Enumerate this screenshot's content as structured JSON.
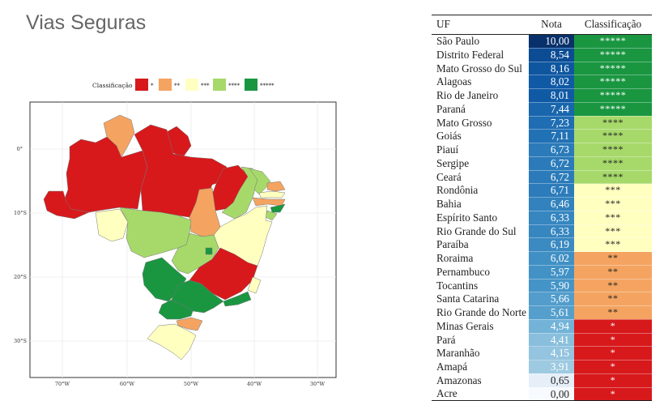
{
  "page": {
    "title": "Vias Seguras"
  },
  "colors": {
    "c1": "#d7191c",
    "c2": "#f4a460",
    "c3": "#ffffc0",
    "c4": "#a6d96a",
    "c5": "#1a9641"
  },
  "map": {
    "legend_title": "Classificação",
    "legend_items": [
      {
        "label": "*",
        "color": "#d7191c"
      },
      {
        "label": "**",
        "color": "#f4a460"
      },
      {
        "label": "***",
        "color": "#ffffc0"
      },
      {
        "label": "****",
        "color": "#a6d96a"
      },
      {
        "label": "*****",
        "color": "#1a9641"
      }
    ],
    "lat_labels": [
      "0°",
      "10°S",
      "20°S",
      "30°S"
    ],
    "lon_labels": [
      "70°W",
      "60°W",
      "50°W",
      "40°W",
      "30°W"
    ]
  },
  "table": {
    "headers": {
      "uf": "UF",
      "nota": "Nota",
      "classificacao": "Classificação"
    },
    "rows": [
      {
        "uf": "São Paulo",
        "nota": "10,00",
        "cls": "*****",
        "nota_color": "#08306b",
        "cls_color": "#1a9641",
        "cls_text": "#ffffff"
      },
      {
        "uf": "Distrito Federal",
        "nota": "8,54",
        "cls": "*****",
        "nota_color": "#0b4c94",
        "cls_color": "#1a9641",
        "cls_text": "#ffffff"
      },
      {
        "uf": "Mato Grosso do Sul",
        "nota": "8,16",
        "cls": "*****",
        "nota_color": "#0e56a0",
        "cls_color": "#1a9641",
        "cls_text": "#ffffff"
      },
      {
        "uf": "Alagoas",
        "nota": "8,02",
        "cls": "*****",
        "nota_color": "#105aa5",
        "cls_color": "#1a9641",
        "cls_text": "#ffffff"
      },
      {
        "uf": "Rio de Janeiro",
        "nota": "8,01",
        "cls": "*****",
        "nota_color": "#105aa5",
        "cls_color": "#1a9641",
        "cls_text": "#ffffff"
      },
      {
        "uf": "Paraná",
        "nota": "7,44",
        "cls": "*****",
        "nota_color": "#1966ad",
        "cls_color": "#1a9641",
        "cls_text": "#ffffff"
      },
      {
        "uf": "Mato Grosso",
        "nota": "7,23",
        "cls": "****",
        "nota_color": "#1f6db2",
        "cls_color": "#a6d96a",
        "cls_text": "#222222"
      },
      {
        "uf": "Goiás",
        "nota": "7,11",
        "cls": "****",
        "nota_color": "#2171b5",
        "cls_color": "#a6d96a",
        "cls_text": "#222222"
      },
      {
        "uf": "Piauí",
        "nota": "6,73",
        "cls": "****",
        "nota_color": "#2b7bba",
        "cls_color": "#a6d96a",
        "cls_text": "#222222"
      },
      {
        "uf": "Sergipe",
        "nota": "6,72",
        "cls": "****",
        "nota_color": "#2b7bba",
        "cls_color": "#a6d96a",
        "cls_text": "#222222"
      },
      {
        "uf": "Ceará",
        "nota": "6,72",
        "cls": "****",
        "nota_color": "#2b7bba",
        "cls_color": "#a6d96a",
        "cls_text": "#222222"
      },
      {
        "uf": "Rondônia",
        "nota": "6,71",
        "cls": "***",
        "nota_color": "#2c7cbb",
        "cls_color": "#ffffc0",
        "cls_text": "#222222"
      },
      {
        "uf": "Bahia",
        "nota": "6,46",
        "cls": "***",
        "nota_color": "#3282be",
        "cls_color": "#ffffc0",
        "cls_text": "#222222"
      },
      {
        "uf": "Espírito Santo",
        "nota": "6,33",
        "cls": "***",
        "nota_color": "#3686c0",
        "cls_color": "#ffffc0",
        "cls_text": "#222222"
      },
      {
        "uf": "Rio Grande do Sul",
        "nota": "6,33",
        "cls": "***",
        "nota_color": "#3686c0",
        "cls_color": "#ffffc0",
        "cls_text": "#222222"
      },
      {
        "uf": "Paraíba",
        "nota": "6,19",
        "cls": "***",
        "nota_color": "#3b8ac2",
        "cls_color": "#ffffc0",
        "cls_text": "#222222"
      },
      {
        "uf": "Roraima",
        "nota": "6,02",
        "cls": "**",
        "nota_color": "#4090c5",
        "cls_color": "#f4a460",
        "cls_text": "#222222"
      },
      {
        "uf": "Pernambuco",
        "nota": "5,97",
        "cls": "**",
        "nota_color": "#4292c6",
        "cls_color": "#f4a460",
        "cls_text": "#222222"
      },
      {
        "uf": "Tocantins",
        "nota": "5,90",
        "cls": "**",
        "nota_color": "#4594c7",
        "cls_color": "#f4a460",
        "cls_text": "#222222"
      },
      {
        "uf": "Santa Catarina",
        "nota": "5,66",
        "cls": "**",
        "nota_color": "#529dcc",
        "cls_color": "#f4a460",
        "cls_text": "#222222"
      },
      {
        "uf": "Rio Grande do Norte",
        "nota": "5,61",
        "cls": "**",
        "nota_color": "#559fcd",
        "cls_color": "#f4a460",
        "cls_text": "#222222"
      },
      {
        "uf": "Minas Gerais",
        "nota": "4,94",
        "cls": "*",
        "nota_color": "#73b3d8",
        "cls_color": "#d7191c",
        "cls_text": "#ffffff"
      },
      {
        "uf": "Pará",
        "nota": "4,41",
        "cls": "*",
        "nota_color": "#89bfdd",
        "cls_color": "#d7191c",
        "cls_text": "#ffffff"
      },
      {
        "uf": "Maranhão",
        "nota": "4,15",
        "cls": "*",
        "nota_color": "#94c4df",
        "cls_color": "#d7191c",
        "cls_text": "#ffffff"
      },
      {
        "uf": "Amapá",
        "nota": "3,91",
        "cls": "*",
        "nota_color": "#9ecae1",
        "cls_color": "#d7191c",
        "cls_text": "#ffffff"
      },
      {
        "uf": "Amazonas",
        "nota": "0,65",
        "cls": "*",
        "nota_color": "#e6eff8",
        "cls_color": "#d7191c",
        "cls_text": "#ffffff"
      },
      {
        "uf": "Acre",
        "nota": "0,00",
        "cls": "*",
        "nota_color": "#f7fbff",
        "cls_color": "#d7191c",
        "cls_text": "#ffffff"
      }
    ]
  }
}
